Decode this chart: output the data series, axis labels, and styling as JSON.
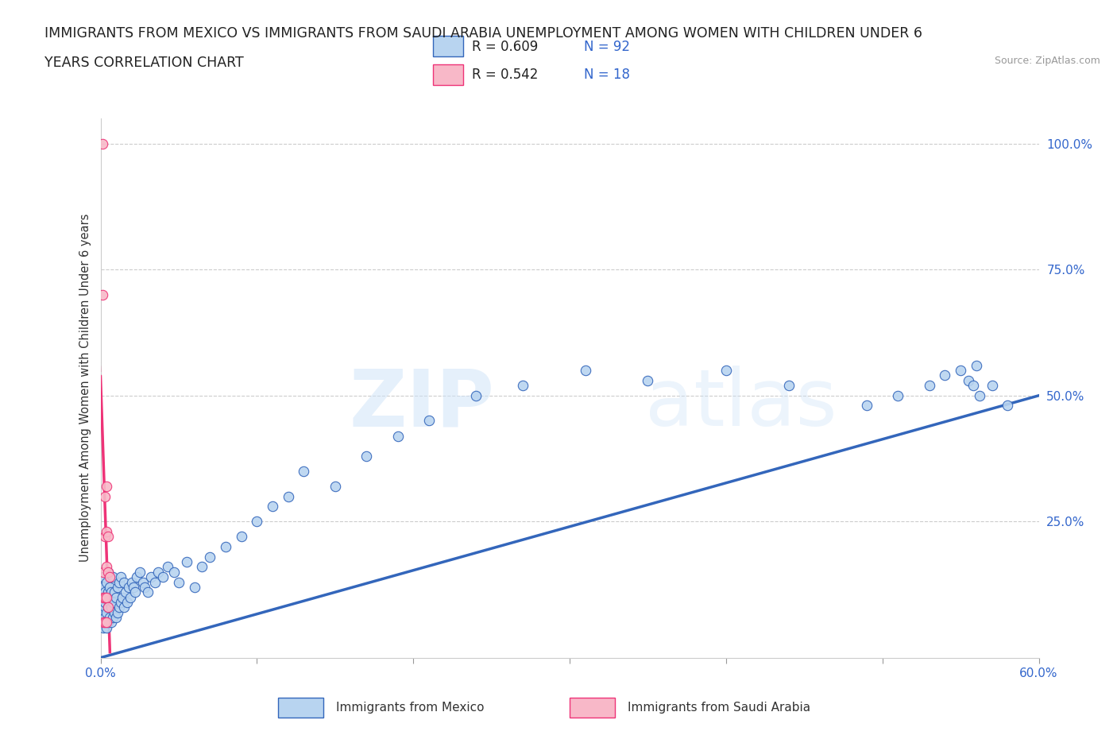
{
  "title_line1": "IMMIGRANTS FROM MEXICO VS IMMIGRANTS FROM SAUDI ARABIA UNEMPLOYMENT AMONG WOMEN WITH CHILDREN UNDER 6",
  "title_line2": "YEARS CORRELATION CHART",
  "source": "Source: ZipAtlas.com",
  "ylabel": "Unemployment Among Women with Children Under 6 years",
  "xlim": [
    0,
    0.6
  ],
  "ylim": [
    -0.02,
    1.05
  ],
  "R_mexico": 0.609,
  "N_mexico": 92,
  "R_saudi": 0.542,
  "N_saudi": 18,
  "color_mexico": "#b8d4f0",
  "color_saudi": "#f8b8c8",
  "trendline_mexico_color": "#3366bb",
  "trendline_saudi_color": "#ee3377",
  "watermark_zip": "ZIP",
  "watermark_atlas": "atlas",
  "legend_label_mexico": "Immigrants from Mexico",
  "legend_label_saudi": "Immigrants from Saudi Arabia",
  "mexico_x": [
    0.001,
    0.001,
    0.001,
    0.002,
    0.002,
    0.002,
    0.002,
    0.003,
    0.003,
    0.003,
    0.003,
    0.003,
    0.004,
    0.004,
    0.004,
    0.004,
    0.005,
    0.005,
    0.005,
    0.005,
    0.006,
    0.006,
    0.006,
    0.007,
    0.007,
    0.007,
    0.008,
    0.008,
    0.008,
    0.009,
    0.009,
    0.01,
    0.01,
    0.011,
    0.011,
    0.012,
    0.012,
    0.013,
    0.013,
    0.014,
    0.015,
    0.015,
    0.016,
    0.017,
    0.018,
    0.019,
    0.02,
    0.021,
    0.022,
    0.023,
    0.025,
    0.027,
    0.028,
    0.03,
    0.032,
    0.035,
    0.037,
    0.04,
    0.043,
    0.047,
    0.05,
    0.055,
    0.06,
    0.065,
    0.07,
    0.08,
    0.09,
    0.1,
    0.11,
    0.12,
    0.13,
    0.15,
    0.17,
    0.19,
    0.21,
    0.24,
    0.27,
    0.31,
    0.35,
    0.4,
    0.44,
    0.49,
    0.51,
    0.53,
    0.54,
    0.55,
    0.555,
    0.558,
    0.56,
    0.562,
    0.57,
    0.58
  ],
  "mexico_y": [
    0.05,
    0.08,
    0.12,
    0.04,
    0.07,
    0.1,
    0.14,
    0.05,
    0.08,
    0.11,
    0.06,
    0.09,
    0.04,
    0.07,
    0.1,
    0.13,
    0.05,
    0.08,
    0.11,
    0.15,
    0.06,
    0.09,
    0.12,
    0.05,
    0.08,
    0.11,
    0.06,
    0.09,
    0.14,
    0.07,
    0.11,
    0.06,
    0.1,
    0.07,
    0.12,
    0.08,
    0.13,
    0.09,
    0.14,
    0.1,
    0.08,
    0.13,
    0.11,
    0.09,
    0.12,
    0.1,
    0.13,
    0.12,
    0.11,
    0.14,
    0.15,
    0.13,
    0.12,
    0.11,
    0.14,
    0.13,
    0.15,
    0.14,
    0.16,
    0.15,
    0.13,
    0.17,
    0.12,
    0.16,
    0.18,
    0.2,
    0.22,
    0.25,
    0.28,
    0.3,
    0.35,
    0.32,
    0.38,
    0.42,
    0.45,
    0.5,
    0.52,
    0.55,
    0.53,
    0.55,
    0.52,
    0.48,
    0.5,
    0.52,
    0.54,
    0.55,
    0.53,
    0.52,
    0.56,
    0.5,
    0.52,
    0.48
  ],
  "saudi_x": [
    0.001,
    0.001,
    0.002,
    0.002,
    0.002,
    0.003,
    0.003,
    0.003,
    0.003,
    0.004,
    0.004,
    0.004,
    0.004,
    0.004,
    0.005,
    0.005,
    0.005,
    0.006
  ],
  "saudi_y": [
    1.0,
    0.7,
    0.05,
    0.1,
    0.15,
    0.05,
    0.1,
    0.22,
    0.3,
    0.05,
    0.1,
    0.16,
    0.23,
    0.32,
    0.08,
    0.15,
    0.22,
    0.14
  ],
  "saudi_trendline_x0": 0.0,
  "saudi_trendline_x1": 0.007,
  "blue_line_y_at_60pct": 0.5,
  "blue_line_y_at_0": -0.02
}
